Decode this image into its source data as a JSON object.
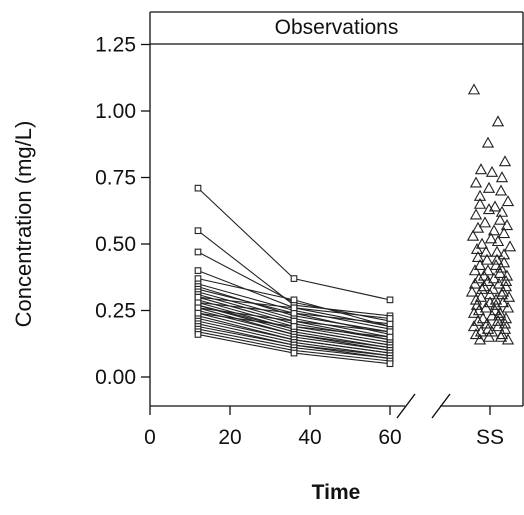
{
  "chart_data": {
    "type": "scatter",
    "panel_title": "Observations",
    "xlabel": "Time",
    "ylabel": "Concentration (mg/L)",
    "xlim": [
      0,
      75
    ],
    "ylim": [
      -0.12,
      1.38
    ],
    "x_ticks": [
      0,
      20,
      40,
      60
    ],
    "x_tick_labels": [
      "0",
      "20",
      "40",
      "60"
    ],
    "y_ticks": [
      0.0,
      0.25,
      0.5,
      0.75,
      1.0,
      1.25
    ],
    "y_tick_labels": [
      "0.00",
      "0.25",
      "0.50",
      "0.75",
      "1.00",
      "1.25"
    ],
    "ss_label": "SS",
    "axis_break": true,
    "time_profiles": {
      "x": [
        12,
        36,
        60
      ],
      "subjects": [
        [
          0.71,
          0.37,
          0.29
        ],
        [
          0.55,
          0.27,
          0.23
        ],
        [
          0.47,
          0.28,
          0.21
        ],
        [
          0.4,
          0.26,
          0.19
        ],
        [
          0.37,
          0.29,
          0.19
        ],
        [
          0.35,
          0.25,
          0.18
        ],
        [
          0.34,
          0.23,
          0.17
        ],
        [
          0.33,
          0.24,
          0.16
        ],
        [
          0.32,
          0.22,
          0.15
        ],
        [
          0.31,
          0.21,
          0.14
        ],
        [
          0.3,
          0.2,
          0.14
        ],
        [
          0.29,
          0.19,
          0.13
        ],
        [
          0.28,
          0.18,
          0.12
        ],
        [
          0.27,
          0.18,
          0.12
        ],
        [
          0.27,
          0.17,
          0.11
        ],
        [
          0.26,
          0.16,
          0.11
        ],
        [
          0.25,
          0.16,
          0.1
        ],
        [
          0.24,
          0.15,
          0.1
        ],
        [
          0.23,
          0.14,
          0.09
        ],
        [
          0.22,
          0.14,
          0.09
        ],
        [
          0.21,
          0.13,
          0.08
        ],
        [
          0.2,
          0.12,
          0.08
        ],
        [
          0.19,
          0.12,
          0.07
        ],
        [
          0.18,
          0.11,
          0.07
        ],
        [
          0.17,
          0.1,
          0.06
        ],
        [
          0.16,
          0.09,
          0.05
        ],
        [
          0.28,
          0.24,
          0.2
        ],
        [
          0.3,
          0.26,
          0.22
        ],
        [
          0.26,
          0.21,
          0.17
        ],
        [
          0.24,
          0.19,
          0.15
        ]
      ]
    },
    "steady_state": {
      "values": [
        1.08,
        0.96,
        0.88,
        0.81,
        0.78,
        0.77,
        0.75,
        0.73,
        0.71,
        0.7,
        0.68,
        0.66,
        0.65,
        0.64,
        0.63,
        0.62,
        0.61,
        0.59,
        0.58,
        0.57,
        0.56,
        0.55,
        0.54,
        0.53,
        0.52,
        0.51,
        0.5,
        0.49,
        0.48,
        0.47,
        0.47,
        0.46,
        0.45,
        0.44,
        0.44,
        0.43,
        0.42,
        0.42,
        0.41,
        0.4,
        0.4,
        0.39,
        0.38,
        0.38,
        0.37,
        0.37,
        0.36,
        0.36,
        0.35,
        0.35,
        0.34,
        0.34,
        0.33,
        0.33,
        0.32,
        0.32,
        0.31,
        0.31,
        0.3,
        0.3,
        0.29,
        0.29,
        0.28,
        0.28,
        0.27,
        0.27,
        0.26,
        0.26,
        0.25,
        0.25,
        0.24,
        0.24,
        0.23,
        0.23,
        0.22,
        0.22,
        0.21,
        0.21,
        0.2,
        0.2,
        0.19,
        0.19,
        0.18,
        0.18,
        0.17,
        0.17,
        0.16,
        0.16,
        0.15,
        0.15,
        0.14,
        0.14
      ]
    }
  }
}
